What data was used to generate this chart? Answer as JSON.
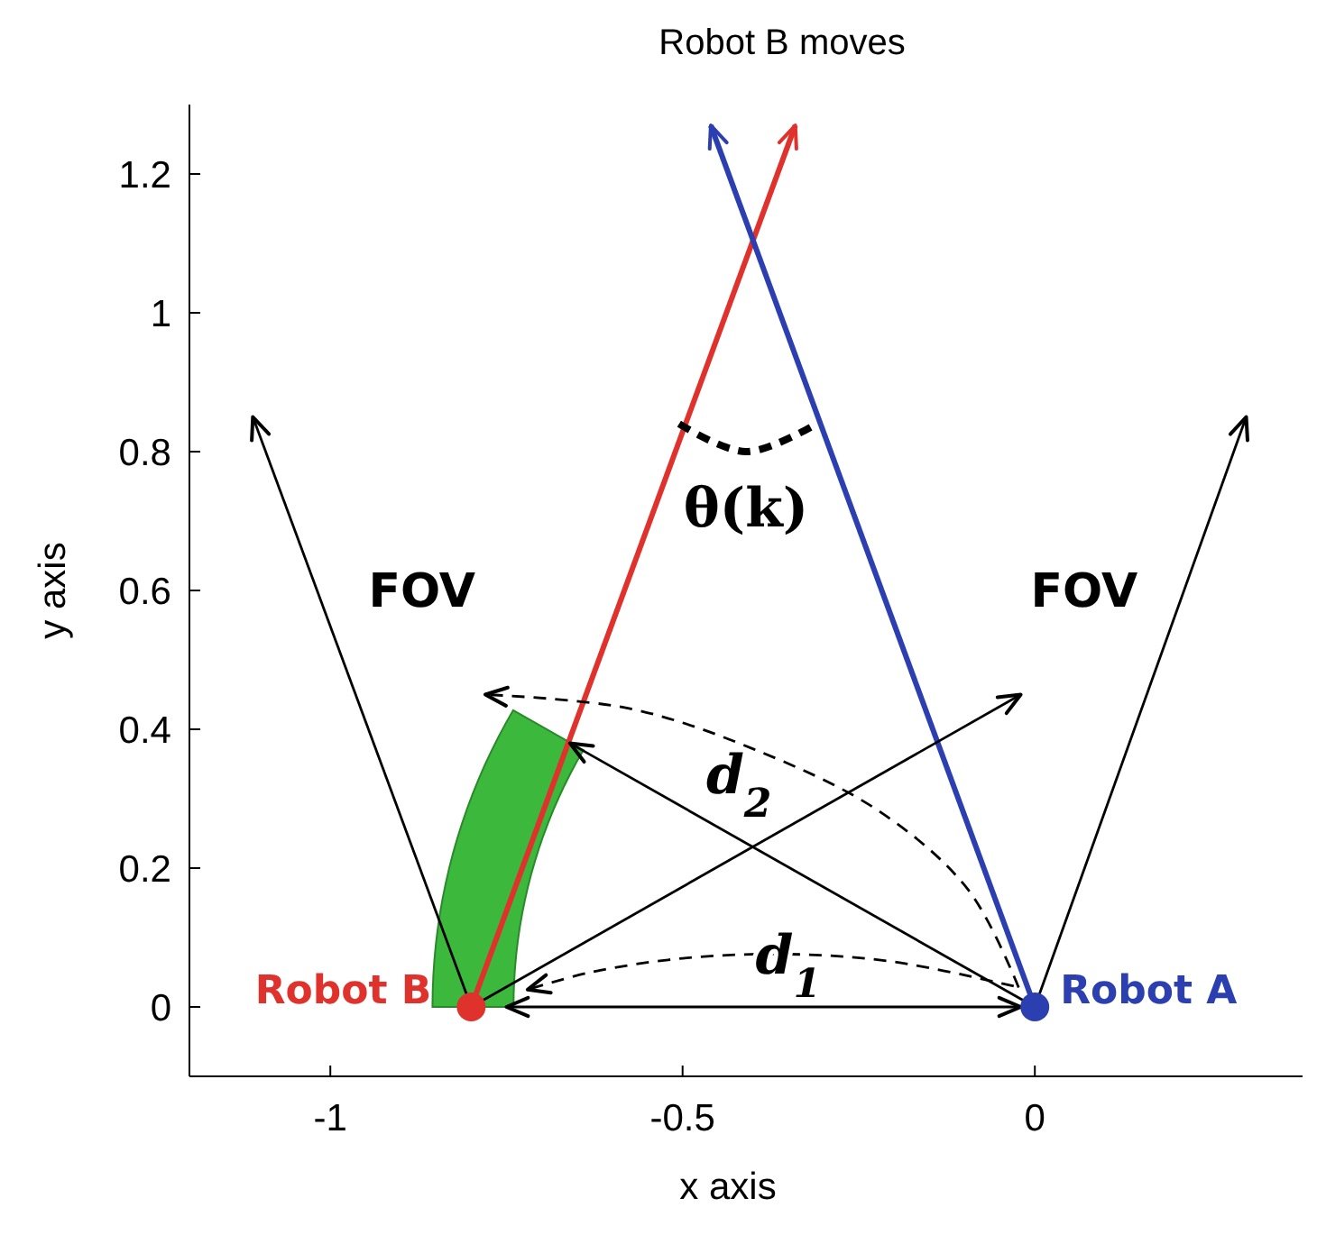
{
  "chart_data": {
    "type": "line",
    "title": "Robot B moves",
    "xlabel": "x axis",
    "ylabel": "y axis",
    "xlim": [
      -1.2,
      0.38
    ],
    "ylim": [
      -0.1,
      1.3
    ],
    "xticks": [
      -1,
      -0.5,
      0
    ],
    "yticks": [
      0,
      0.2,
      0.4,
      0.6,
      0.8,
      1,
      1.2
    ],
    "grid": false,
    "line_style": "solid",
    "series": [
      {
        "color": "#e0322c",
        "x": [
          -0.8,
          -0.34
        ],
        "values": [
          0,
          1.27
        ]
      },
      {
        "color": "#2b3fb0",
        "x": [
          0,
          -0.46
        ],
        "values": [
          0,
          1.27
        ]
      },
      {
        "color": "#000000",
        "x": [
          -0.8,
          -1.11
        ],
        "values": [
          0,
          0.85
        ]
      },
      {
        "color": "#000000",
        "x": [
          -0.8,
          -0.02
        ],
        "values": [
          0,
          0.45
        ]
      },
      {
        "color": "#000000",
        "x": [
          0,
          0.3
        ],
        "values": [
          0,
          0.85
        ]
      },
      {
        "color": "#000000",
        "x": [
          0,
          -0.66
        ],
        "values": [
          0,
          0.38
        ]
      },
      {
        "color": "#000000",
        "x": [
          -0.75,
          -0.02
        ],
        "values": [
          0,
          0
        ]
      },
      {
        "color": "#000000",
        "line_style": "dashed",
        "x": [
          -0.03,
          -0.2,
          -0.35,
          -0.5,
          -0.63,
          -0.72
        ],
        "values": [
          0.03,
          0.065,
          0.076,
          0.07,
          0.05,
          0.025
        ]
      },
      {
        "color": "#000000",
        "line_style": "dashed",
        "x": [
          -0.023,
          -0.094,
          -0.221,
          -0.398,
          -0.576,
          -0.78
        ],
        "values": [
          0.028,
          0.168,
          0.282,
          0.371,
          0.43,
          0.45
        ]
      },
      {
        "color": "#000000",
        "line_style": "dashed",
        "x": [
          -0.505,
          -0.41,
          -0.31
        ],
        "values": [
          0.84,
          0.8,
          0.84
        ]
      },
      {
        "type": "scatter",
        "name": "Robot B",
        "color": "#e0322c",
        "marker": "circle",
        "x": [
          -0.8
        ],
        "values": [
          0
        ]
      },
      {
        "type": "scatter",
        "name": "Robot A",
        "color": "#2b3fb0",
        "marker": "circle",
        "x": [
          0
        ],
        "values": [
          0
        ]
      }
    ],
    "annotations": [
      "FOV",
      "FOV",
      "θ(k)",
      "d$_{2}$",
      "d$_{1}$"
    ]
  }
}
